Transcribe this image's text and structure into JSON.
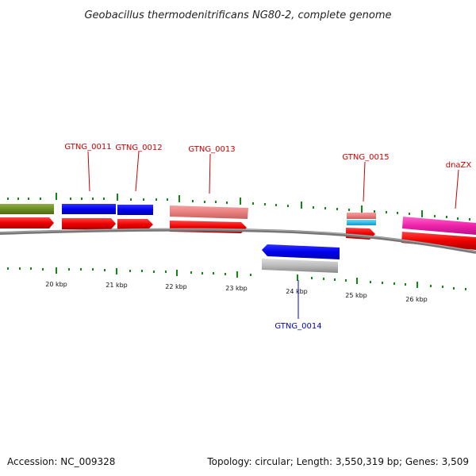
{
  "title": "Geobacillus thermodenitrificans NG80-2, complete genome",
  "footer": {
    "accession": "Accession: NC_009328",
    "summary": "Topology: circular; Length: 3,550,319 bp; Genes: 3,509"
  },
  "ticks": [
    "20 kbp",
    "21 kbp",
    "22 kbp",
    "23 kbp",
    "24 kbp",
    "25 kbp",
    "26 kbp"
  ],
  "genes": {
    "g11": {
      "label": "GTNG_0011"
    },
    "g12": {
      "label": "GTNG_0012"
    },
    "g13": {
      "label": "GTNG_0013"
    },
    "g14": {
      "label": "GTNG_0014"
    },
    "g15": {
      "label": "GTNG_0015"
    },
    "dnazx": {
      "label": "dnaZX"
    }
  },
  "colors": {
    "forward_label": "#cc0000",
    "reverse_label": "#0000cc",
    "cds_blue": "#0000ee",
    "gene_red": "#ee0000",
    "rrna_pink": "#e88080",
    "trna_cyan": "#22bbee",
    "magenta": "#ee22aa",
    "olive": "#6b8e23",
    "grey_feature": "#bbbbbb",
    "backbone": "#888888",
    "tick_green": "#118811"
  }
}
